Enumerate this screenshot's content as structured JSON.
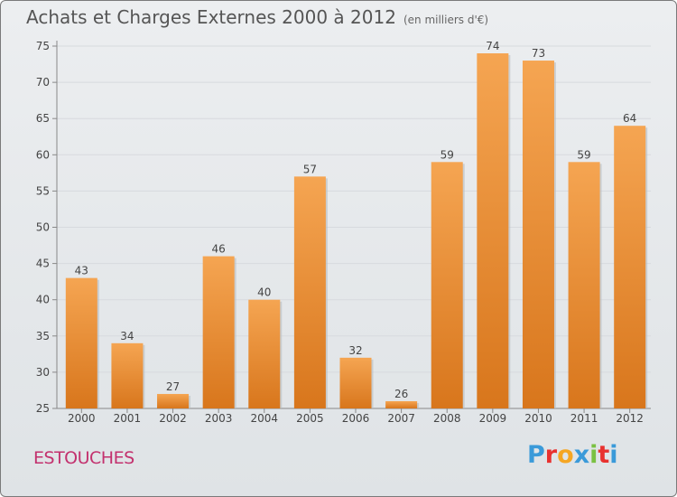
{
  "title": "Achats et Charges Externes 2000 à 2012",
  "unit_note": "(en milliers d'€)",
  "commune": "ESTOUCHES",
  "logo": {
    "letters": [
      "P",
      "r",
      "o",
      "x",
      "i",
      "t",
      "i"
    ],
    "colors": [
      "#3a9ad9",
      "#e8312f",
      "#f5a623",
      "#3a9ad9",
      "#7ac142",
      "#e8312f",
      "#3a9ad9"
    ]
  },
  "colors": {
    "bar_light": "#f5a552",
    "bar_dark": "#d8761c",
    "text": "#444444",
    "grid": "#d7dade"
  },
  "chart_data": {
    "type": "bar",
    "categories": [
      "2000",
      "2001",
      "2002",
      "2003",
      "2004",
      "2005",
      "2006",
      "2007",
      "2008",
      "2009",
      "2010",
      "2011",
      "2012"
    ],
    "values": [
      43,
      34,
      27,
      46,
      40,
      57,
      32,
      26,
      59,
      74,
      73,
      59,
      64
    ],
    "ylim": [
      25,
      75
    ],
    "yticks": [
      25,
      30,
      35,
      40,
      45,
      50,
      55,
      60,
      65,
      70,
      75
    ],
    "grid": true,
    "legend": "none"
  }
}
